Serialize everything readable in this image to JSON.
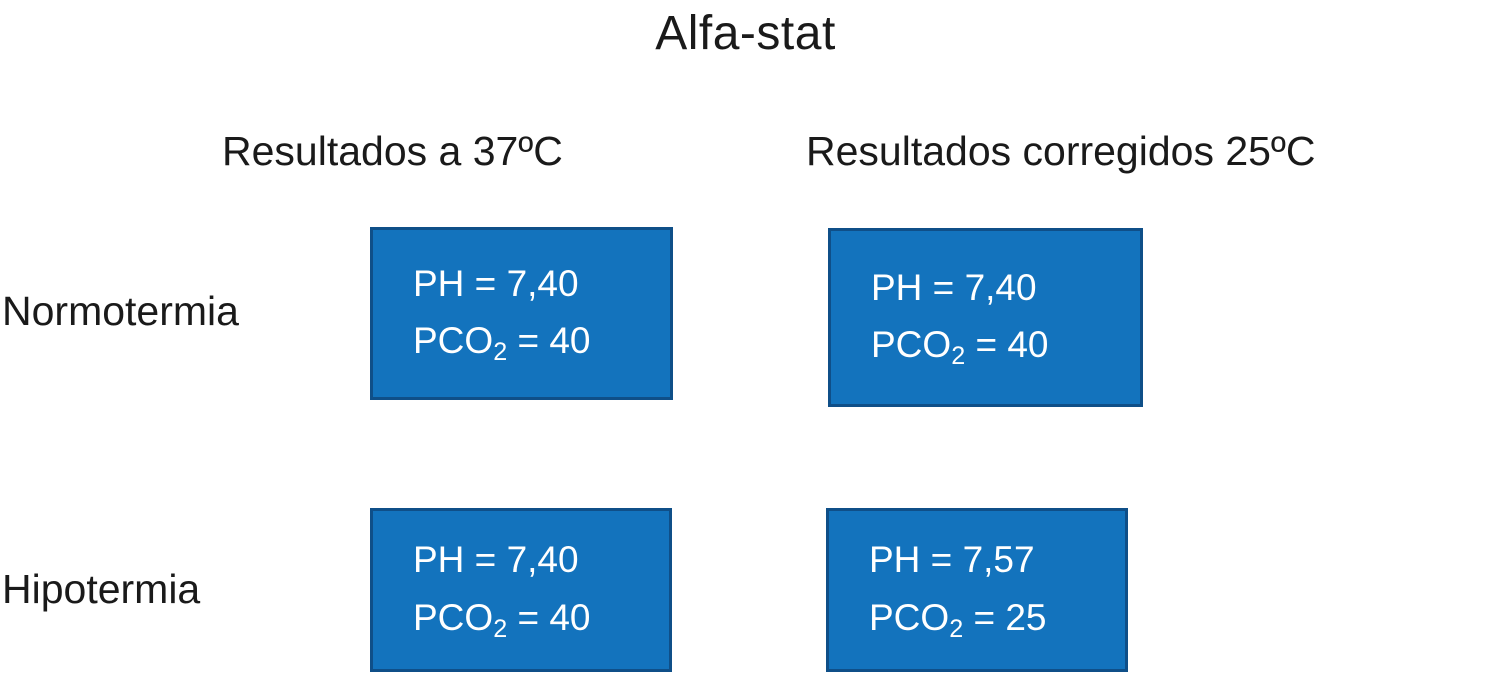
{
  "title": "Alfa-stat",
  "columns": [
    {
      "label": "Resultados a 37ºC"
    },
    {
      "label": "Resultados corregidos 25ºC"
    }
  ],
  "rows": [
    {
      "label": "Normotermia"
    },
    {
      "label": "Hipotermia"
    }
  ],
  "boxes": [
    {
      "ph": "PH = 7,40",
      "pco_base": "PCO",
      "pco_sub": "2",
      "pco_rest": " = 40"
    },
    {
      "ph": "PH = 7,40",
      "pco_base": "PCO",
      "pco_sub": "2",
      "pco_rest": " = 40"
    },
    {
      "ph": "PH = 7,40",
      "pco_base": "PCO",
      "pco_sub": "2",
      "pco_rest": " = 40"
    },
    {
      "ph": "PH = 7,57",
      "pco_base": "PCO",
      "pco_sub": "2",
      "pco_rest": " = 25"
    }
  ],
  "colors": {
    "box_fill": "#1373bd",
    "box_border": "#0f4f88",
    "box_text": "#ffffff",
    "heading_text": "#1a1a1a"
  }
}
